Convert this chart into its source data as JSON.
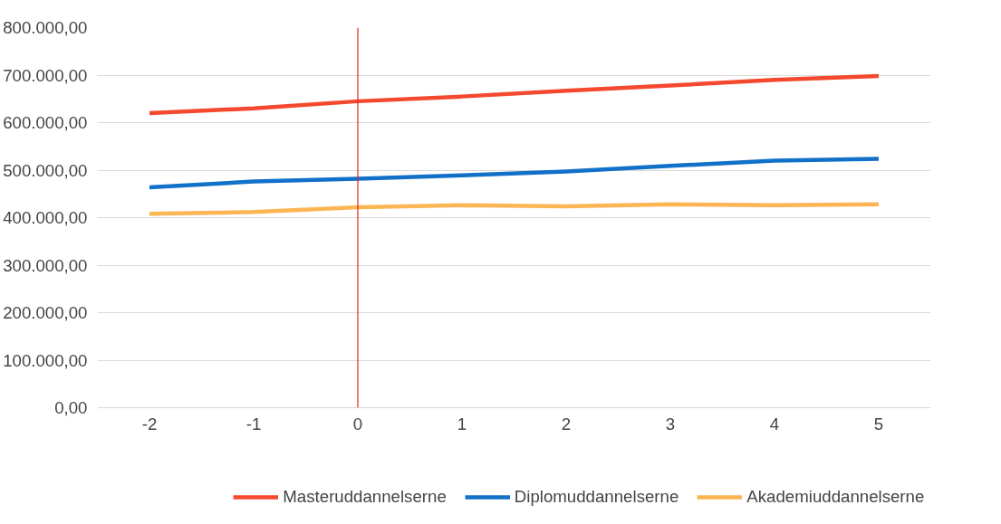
{
  "chart_data": {
    "type": "line",
    "categories": [
      "-2",
      "-1",
      "0",
      "1",
      "2",
      "3",
      "4",
      "5"
    ],
    "series": [
      {
        "name": "Masteruddannelserne",
        "color": "#f4492f",
        "values": [
          620000,
          630000,
          645000,
          655000,
          667000,
          678000,
          690000,
          698000
        ]
      },
      {
        "name": "Diplomuddannelserne",
        "color": "#1170c8",
        "values": [
          464000,
          476000,
          482000,
          489000,
          497000,
          509000,
          520000,
          524000
        ]
      },
      {
        "name": "Akademiuddannelserne",
        "color": "#fcb553",
        "values": [
          408000,
          412000,
          422000,
          426000,
          424000,
          428000,
          426000,
          428000
        ]
      }
    ],
    "ylim": [
      0,
      800000
    ],
    "yticks": [
      {
        "value": 0,
        "label": "0,00"
      },
      {
        "value": 100000,
        "label": "100.000,00"
      },
      {
        "value": 200000,
        "label": "200.000,00"
      },
      {
        "value": 300000,
        "label": "300.000,00"
      },
      {
        "value": 400000,
        "label": "400.000,00"
      },
      {
        "value": 500000,
        "label": "500.000,00"
      },
      {
        "value": 600000,
        "label": "600.000,00"
      },
      {
        "value": 700000,
        "label": "700.000,00"
      },
      {
        "value": 800000,
        "label": "800.000,00"
      }
    ],
    "grid": "y",
    "legend": "bottom",
    "marker": "none",
    "line_style": "solid",
    "ref_lines": [
      {
        "axis": "x",
        "value": "0",
        "color": "#e8231c"
      }
    ]
  }
}
